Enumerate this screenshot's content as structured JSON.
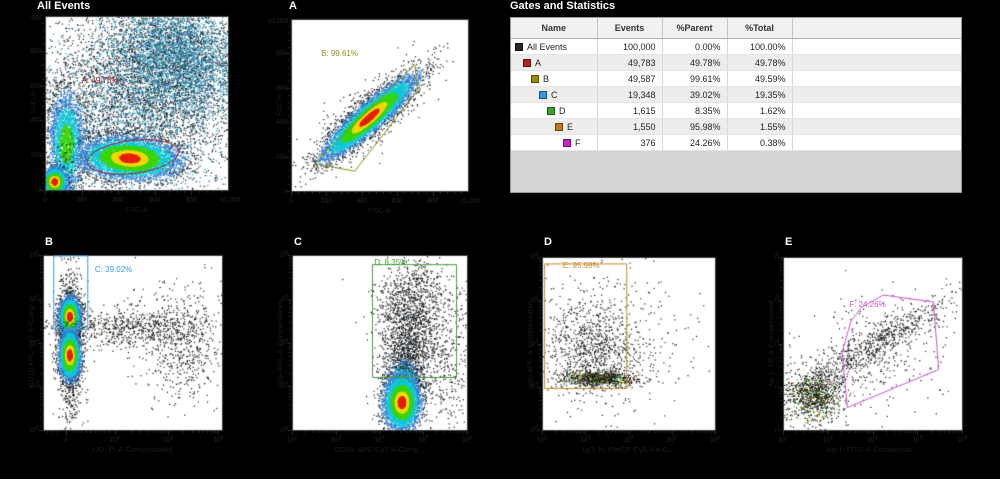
{
  "table": {
    "title": "Gates and Statistics",
    "columns": [
      "Name",
      "Events",
      "%Parent",
      "%Total"
    ],
    "rows": [
      {
        "name": "All Events",
        "color": "#262626",
        "indent": 0,
        "events": "100,000",
        "parent": "0.00%",
        "total": "100.00%"
      },
      {
        "name": "A",
        "color": "#b41f1f",
        "indent": 1,
        "events": "49,783",
        "parent": "49.78%",
        "total": "49.78%"
      },
      {
        "name": "B",
        "color": "#9a8c00",
        "indent": 2,
        "events": "49,587",
        "parent": "99.61%",
        "total": "49.59%"
      },
      {
        "name": "C",
        "color": "#2e9be8",
        "indent": 3,
        "events": "19,348",
        "parent": "39.02%",
        "total": "19.35%"
      },
      {
        "name": "D",
        "color": "#3aa52f",
        "indent": 4,
        "events": "1,615",
        "parent": "8.35%",
        "total": "1.62%"
      },
      {
        "name": "E",
        "color": "#c87818",
        "indent": 5,
        "events": "1,550",
        "parent": "95.98%",
        "total": "1.55%"
      },
      {
        "name": "F",
        "color": "#cc22cc",
        "indent": 6,
        "events": "376",
        "parent": "24.26%",
        "total": "0.38%"
      }
    ]
  },
  "chart_data": [
    {
      "type": "scatter",
      "title": "All Events",
      "xlabel": "FSC-A",
      "ylabel": "SSC-A",
      "xtype": "linear",
      "ytype": "linear",
      "xmult": "x1,000",
      "ymult": "x1,000",
      "xticks": [
        {
          "t": "0",
          "f": 0
        },
        {
          "t": "200",
          "f": 0.2
        },
        {
          "t": "400",
          "f": 0.4
        },
        {
          "t": "600",
          "f": 0.6
        },
        {
          "t": "800",
          "f": 0.8
        }
      ],
      "yticks": [
        {
          "t": "0",
          "f": 0
        },
        {
          "t": "200",
          "f": 0.2
        },
        {
          "t": "400",
          "f": 0.4
        },
        {
          "t": "600",
          "f": 0.6
        },
        {
          "t": "800",
          "f": 0.8
        }
      ],
      "gate": {
        "label": "A: 49.78%",
        "color": "#9b1e1e",
        "shape": "ellipse",
        "cx": 0.48,
        "cy": 0.19,
        "rx": 0.25,
        "ry": 0.095,
        "rot": -7,
        "lx": 0.2,
        "ly": 0.63
      },
      "clusters": [
        {
          "cx": 0.55,
          "cy": 0.6,
          "sx": 0.3,
          "sy": 0.28,
          "rot": 0,
          "n": 3000,
          "p": "dark"
        },
        {
          "cx": 0.72,
          "cy": 0.78,
          "sx": 0.2,
          "sy": 0.16,
          "rot": -25,
          "n": 4500,
          "p": "cool2"
        },
        {
          "cx": 0.5,
          "cy": 0.42,
          "sx": 0.28,
          "sy": 0.22,
          "rot": 0,
          "n": 2500,
          "p": "cool2"
        },
        {
          "cx": 0.115,
          "cy": 0.27,
          "sx": 0.05,
          "sy": 0.16,
          "rot": 0,
          "n": 2800,
          "p": "cool"
        },
        {
          "cx": 0.46,
          "cy": 0.185,
          "sx": 0.125,
          "sy": 0.055,
          "rot": -4,
          "n": 6500,
          "p": "hot"
        },
        {
          "cx": 0.05,
          "cy": 0.05,
          "sx": 0.032,
          "sy": 0.038,
          "rot": 0,
          "n": 2600,
          "p": "hot"
        }
      ]
    },
    {
      "type": "scatter",
      "title": "A",
      "xlabel": "FSC-A",
      "ylabel": "FSC-H",
      "xtype": "linear",
      "ytype": "linear",
      "xmult": "x1,000",
      "ymult": "x1,000",
      "xticks": [
        {
          "t": "0",
          "f": 0
        },
        {
          "t": "200",
          "f": 0.2
        },
        {
          "t": "400",
          "f": 0.4
        },
        {
          "t": "600",
          "f": 0.6
        },
        {
          "t": "800",
          "f": 0.8
        }
      ],
      "yticks": [
        {
          "t": "0",
          "f": 0
        },
        {
          "t": "200",
          "f": 0.2
        },
        {
          "t": "400",
          "f": 0.4
        },
        {
          "t": "600",
          "f": 0.6
        },
        {
          "t": "800",
          "f": 0.8
        }
      ],
      "gate": {
        "label": "B: 99.61%",
        "color": "#8f8f1e",
        "shape": "poly",
        "pts": [
          [
            0.13,
            0.16
          ],
          [
            0.36,
            0.115
          ],
          [
            0.715,
            0.585
          ],
          [
            0.7,
            0.735
          ]
        ],
        "lx": 0.17,
        "ly": 0.8
      },
      "clusters": [
        {
          "cx": 0.45,
          "cy": 0.45,
          "sx": 0.21,
          "sy": 0.07,
          "rot": 42,
          "n": 900,
          "p": "dark"
        },
        {
          "cx": 0.44,
          "cy": 0.43,
          "sx": 0.16,
          "sy": 0.035,
          "rot": 42,
          "n": 7000,
          "p": "hot"
        }
      ]
    },
    {
      "type": "scatter",
      "title": "B",
      "xlabel": "L/D: PI-A-Compensated",
      "ylabel": "CD19 APC-Cy7-A-Comp...",
      "xtype": "biexp",
      "ytype": "log",
      "xticks": [
        {
          "t": "0",
          "f": 0.13
        },
        {
          "t": "10",
          "e": "4",
          "f": 0.4
        },
        {
          "t": "10",
          "e": "5",
          "f": 0.7
        },
        {
          "t": "10",
          "e": "6",
          "f": 0.98
        }
      ],
      "yticks": [
        {
          "t": "10",
          "e": "2",
          "f": 0
        },
        {
          "t": "10",
          "e": "3",
          "f": 0.25
        },
        {
          "t": "10",
          "e": "4",
          "f": 0.5
        },
        {
          "t": "10",
          "e": "5",
          "f": 0.75
        },
        {
          "t": "10",
          "e": "6",
          "f": 1
        }
      ],
      "gate": {
        "label": "C: 39.02%",
        "color": "#3a9bd5",
        "shape": "rect",
        "x0": 0.06,
        "y0": 0.575,
        "x1": 0.25,
        "y1": 0.995,
        "lx": 0.29,
        "ly": 0.92
      },
      "clusters": [
        {
          "cx": 0.15,
          "cy": 0.5,
          "sx": 0.035,
          "sy": 0.24,
          "rot": 0,
          "n": 1100,
          "p": "dark"
        },
        {
          "cx": 0.45,
          "cy": 0.59,
          "sx": 0.22,
          "sy": 0.055,
          "rot": 0,
          "n": 650,
          "p": "dark"
        },
        {
          "cx": 0.78,
          "cy": 0.5,
          "sx": 0.13,
          "sy": 0.17,
          "rot": 0,
          "n": 650,
          "p": "dark"
        },
        {
          "cx": 0.147,
          "cy": 0.65,
          "sx": 0.027,
          "sy": 0.052,
          "rot": 0,
          "n": 3600,
          "p": "hot"
        },
        {
          "cx": 0.147,
          "cy": 0.43,
          "sx": 0.028,
          "sy": 0.068,
          "rot": 0,
          "n": 3600,
          "p": "hot"
        }
      ]
    },
    {
      "type": "scatter",
      "title": "C",
      "xlabel": "CD19: APC-Cy7-A-Comp...",
      "ylabel": "IgG APC-A-Compensated",
      "xtype": "log",
      "ytype": "log",
      "xticks": [
        {
          "t": "10",
          "e": "2",
          "f": 0
        },
        {
          "t": "10",
          "e": "3",
          "f": 0.25
        },
        {
          "t": "10",
          "e": "4",
          "f": 0.5
        },
        {
          "t": "10",
          "e": "5",
          "f": 0.75
        },
        {
          "t": "10",
          "e": "6",
          "f": 1
        }
      ],
      "yticks": [
        {
          "t": "10",
          "e": "2",
          "f": 0
        },
        {
          "t": "10",
          "e": "3",
          "f": 0.25
        },
        {
          "t": "10",
          "e": "4",
          "f": 0.5
        },
        {
          "t": "10",
          "e": "5",
          "f": 0.75
        },
        {
          "t": "10",
          "e": "6",
          "f": 1
        }
      ],
      "gate": {
        "label": "D: 8.35%",
        "color": "#4a9e3f",
        "shape": "rect",
        "x0": 0.46,
        "y0": 0.3,
        "x1": 0.94,
        "y1": 0.945,
        "lx": 0.47,
        "ly": 0.96
      },
      "clusters": [
        {
          "cx": 0.66,
          "cy": 0.45,
          "sx": 0.075,
          "sy": 0.14,
          "rot": 0,
          "n": 1300,
          "p": "dark"
        },
        {
          "cx": 0.69,
          "cy": 0.75,
          "sx": 0.11,
          "sy": 0.12,
          "rot": 0,
          "n": 800,
          "p": "dark"
        },
        {
          "cx": 0.88,
          "cy": 0.4,
          "sx": 0.08,
          "sy": 0.2,
          "rot": 0,
          "n": 350,
          "p": "dark"
        },
        {
          "cx": 0.635,
          "cy": 0.28,
          "sx": 0.05,
          "sy": 0.07,
          "rot": 0,
          "n": 700,
          "p": "cool"
        },
        {
          "cx": 0.625,
          "cy": 0.16,
          "sx": 0.048,
          "sy": 0.075,
          "rot": 0,
          "n": 5200,
          "p": "hot"
        }
      ]
    },
    {
      "type": "scatter",
      "title": "D",
      "xlabel": "IgD, M: PerCP-Cy5.5-A-C...",
      "ylabel": "IgG APC-A-Compensated",
      "xtype": "log",
      "ytype": "log",
      "xticks": [
        {
          "t": "10",
          "e": "2",
          "f": 0
        },
        {
          "t": "10",
          "e": "3",
          "f": 0.25
        },
        {
          "t": "10",
          "e": "4",
          "f": 0.5
        },
        {
          "t": "10",
          "e": "5",
          "f": 0.75
        },
        {
          "t": "10",
          "e": "6",
          "f": 1
        }
      ],
      "yticks": [
        {
          "t": "10",
          "e": "2",
          "f": 0
        },
        {
          "t": "10",
          "e": "3",
          "f": 0.25
        },
        {
          "t": "10",
          "e": "4",
          "f": 0.5
        },
        {
          "t": "10",
          "e": "5",
          "f": 0.75
        },
        {
          "t": "10",
          "e": "6",
          "f": 1
        }
      ],
      "gate": {
        "label": "E: 95.98%",
        "color": "#c8872a",
        "shape": "rect",
        "x0": 0.015,
        "y0": 0.24,
        "x1": 0.49,
        "y1": 0.96,
        "lx": 0.12,
        "ly": 0.955
      },
      "clusters": [
        {
          "cx": 0.28,
          "cy": 0.48,
          "sx": 0.15,
          "sy": 0.14,
          "rot": 0,
          "n": 850,
          "p": "dark"
        },
        {
          "cx": 0.42,
          "cy": 0.55,
          "sx": 0.26,
          "sy": 0.2,
          "rot": 0,
          "n": 300,
          "p": "dark"
        },
        {
          "cx": 0.33,
          "cy": 0.3,
          "sx": 0.11,
          "sy": 0.022,
          "rot": 0,
          "n": 800,
          "p": "speck"
        }
      ]
    },
    {
      "type": "scatter",
      "title": "E",
      "xlabel": "Ag-1: FITC-A-Compensat...",
      "ylabel": "Ag-1: PE-A-Compensated",
      "xtype": "log",
      "ytype": "log",
      "xticks": [
        {
          "t": "10",
          "e": "2",
          "f": 0
        },
        {
          "t": "10",
          "e": "3",
          "f": 0.25
        },
        {
          "t": "10",
          "e": "4",
          "f": 0.5
        },
        {
          "t": "10",
          "e": "5",
          "f": 0.75
        },
        {
          "t": "10",
          "e": "6",
          "f": 1
        }
      ],
      "yticks": [
        {
          "t": "10",
          "e": "2",
          "f": 0
        },
        {
          "t": "10",
          "e": "3",
          "f": 0.25
        },
        {
          "t": "10",
          "e": "4",
          "f": 0.5
        },
        {
          "t": "10",
          "e": "5",
          "f": 0.75
        },
        {
          "t": "10",
          "e": "6",
          "f": 1
        }
      ],
      "gate": {
        "label": "F: 24.26%",
        "color": "#cc55cc",
        "shape": "poly",
        "pts": [
          [
            0.36,
            0.13
          ],
          [
            0.33,
            0.45
          ],
          [
            0.38,
            0.63
          ],
          [
            0.44,
            0.71
          ],
          [
            0.56,
            0.78
          ],
          [
            0.84,
            0.74
          ],
          [
            0.87,
            0.35
          ]
        ],
        "lx": 0.37,
        "ly": 0.73
      },
      "clusters": [
        {
          "cx": 0.17,
          "cy": 0.2,
          "sx": 0.08,
          "sy": 0.075,
          "rot": 0,
          "n": 950,
          "p": "speck"
        },
        {
          "cx": 0.52,
          "cy": 0.5,
          "sx": 0.26,
          "sy": 0.05,
          "rot": 33,
          "n": 750,
          "p": "dark"
        },
        {
          "cx": 0.5,
          "cy": 0.42,
          "sx": 0.24,
          "sy": 0.17,
          "rot": 0,
          "n": 280,
          "p": "dark"
        }
      ]
    }
  ]
}
